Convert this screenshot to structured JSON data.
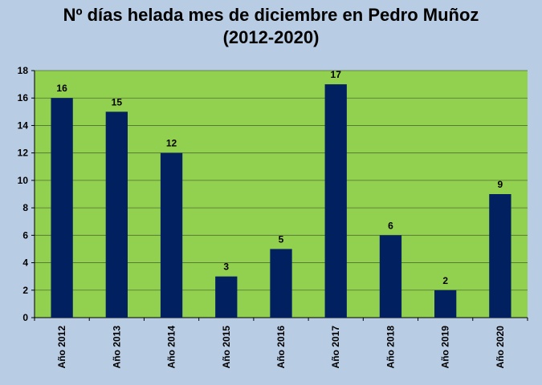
{
  "chart_data": {
    "type": "bar",
    "title_line1": "Nº días helada mes de diciembre en Pedro Muñoz",
    "title_line2": "(2012-2020)",
    "categories": [
      "Año 2012",
      "Año 2013",
      "Año 2014",
      "Año 2015",
      "Año 2016",
      "Año 2017",
      "Año 2018",
      "Año 2019",
      "Año 2020"
    ],
    "values": [
      16,
      15,
      12,
      3,
      5,
      17,
      6,
      2,
      9
    ],
    "ylim": [
      0,
      18
    ],
    "yticks": [
      0,
      2,
      4,
      6,
      8,
      10,
      12,
      14,
      16,
      18
    ],
    "grid": true,
    "legend": "none",
    "colors": {
      "bar": "#002060",
      "plot_bg": "#92d050",
      "page_bg": "#b8cce4",
      "grid": "#4f6f2f"
    }
  }
}
